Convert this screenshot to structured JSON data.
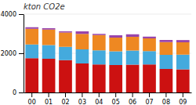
{
  "chart_data": {
    "type": "bar",
    "title": "kton CO2e",
    "stacked": true,
    "grid": true,
    "categories": [
      "00",
      "01",
      "02",
      "03",
      "04",
      "05",
      "06",
      "07",
      "08",
      "09"
    ],
    "series": [
      {
        "color": "#cc1111",
        "values": [
          1750,
          1720,
          1650,
          1480,
          1430,
          1400,
          1420,
          1430,
          1200,
          1180
        ]
      },
      {
        "color": "#44aadd",
        "values": [
          700,
          700,
          680,
          720,
          720,
          700,
          720,
          680,
          720,
          750
        ]
      },
      {
        "color": "#ee8822",
        "values": [
          800,
          790,
          730,
          790,
          780,
          700,
          700,
          650,
          650,
          630
        ]
      },
      {
        "color": "#9944aa",
        "values": [
          80,
          70,
          60,
          130,
          60,
          120,
          130,
          90,
          110,
          115
        ]
      }
    ],
    "ylim": [
      0,
      4000
    ],
    "yticks": [
      0,
      2000,
      4000
    ]
  }
}
